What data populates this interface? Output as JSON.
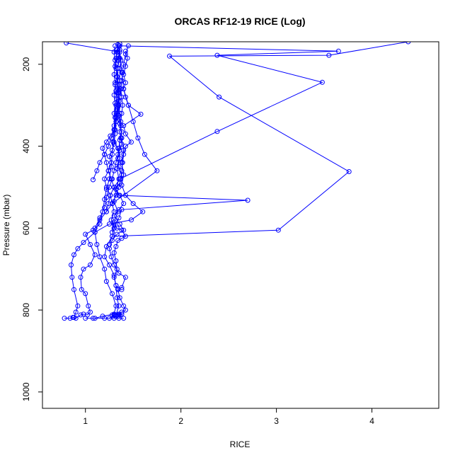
{
  "chart_data": {
    "type": "line",
    "title": "ORCAS RF12-19 RICE (Log)",
    "xlabel": "RICE",
    "ylabel": "Pressure (mbar)",
    "xlim": [
      0.55,
      4.7
    ],
    "ylim": [
      1040,
      145
    ],
    "y_reversed": true,
    "x_ticks": [
      1,
      2,
      3,
      4
    ],
    "y_ticks": [
      200,
      400,
      600,
      800,
      1000
    ],
    "grid": false,
    "colors": {
      "series": "#0000ff",
      "axis": "#000000"
    },
    "series": [
      {
        "points": [
          [
            0.78,
            820
          ],
          [
            0.84,
            820
          ],
          [
            0.87,
            818
          ],
          [
            0.9,
            820
          ],
          [
            0.95,
            812
          ],
          [
            0.98,
            810
          ],
          [
            1.02,
            812
          ],
          [
            1.05,
            805
          ],
          [
            1.03,
            790
          ],
          [
            1.0,
            760
          ],
          [
            0.96,
            750
          ],
          [
            0.95,
            720
          ],
          [
            0.98,
            700
          ],
          [
            1.05,
            690
          ],
          [
            1.1,
            665
          ],
          [
            1.05,
            640
          ],
          [
            1.0,
            615
          ],
          [
            1.08,
            605
          ],
          [
            1.15,
            590
          ],
          [
            1.18,
            560
          ],
          [
            1.2,
            530
          ],
          [
            1.22,
            505
          ],
          [
            1.25,
            480
          ],
          [
            1.27,
            450
          ],
          [
            1.28,
            420
          ],
          [
            1.29,
            390
          ],
          [
            1.3,
            360
          ],
          [
            1.31,
            330
          ],
          [
            1.32,
            300
          ],
          [
            1.33,
            270
          ],
          [
            1.34,
            240
          ],
          [
            1.34,
            210
          ],
          [
            1.35,
            185
          ],
          [
            1.36,
            165
          ],
          [
            1.36,
            150
          ]
        ]
      },
      {
        "points": [
          [
            1.25,
            820
          ],
          [
            1.3,
            812
          ],
          [
            1.35,
            810
          ],
          [
            1.38,
            805
          ],
          [
            1.42,
            800
          ],
          [
            1.4,
            790
          ],
          [
            1.36,
            770
          ],
          [
            1.34,
            750
          ],
          [
            1.38,
            745
          ],
          [
            1.42,
            720
          ],
          [
            1.35,
            710
          ],
          [
            1.3,
            690
          ],
          [
            1.27,
            670
          ],
          [
            1.25,
            650
          ],
          [
            1.28,
            630
          ],
          [
            1.33,
            615
          ],
          [
            1.4,
            605
          ],
          [
            1.36,
            590
          ],
          [
            1.3,
            570
          ],
          [
            1.35,
            555
          ],
          [
            1.4,
            540
          ],
          [
            1.36,
            520
          ],
          [
            1.32,
            505
          ],
          [
            1.36,
            490
          ],
          [
            1.38,
            470
          ],
          [
            1.35,
            450
          ],
          [
            1.34,
            430
          ],
          [
            1.36,
            410
          ],
          [
            1.38,
            395
          ],
          [
            1.37,
            380
          ],
          [
            1.36,
            365
          ],
          [
            1.37,
            340
          ],
          [
            1.38,
            320
          ],
          [
            1.39,
            300
          ],
          [
            1.38,
            280
          ],
          [
            1.37,
            260
          ],
          [
            1.38,
            240
          ],
          [
            1.39,
            220
          ],
          [
            1.4,
            200
          ],
          [
            1.42,
            175
          ],
          [
            1.45,
            155
          ]
        ]
      },
      {
        "points": [
          [
            0.88,
            818
          ],
          [
            0.9,
            805
          ],
          [
            0.92,
            790
          ],
          [
            0.88,
            750
          ],
          [
            0.86,
            720
          ],
          [
            0.85,
            690
          ],
          [
            0.88,
            665
          ],
          [
            0.92,
            650
          ],
          [
            0.98,
            635
          ],
          [
            1.1,
            610
          ],
          [
            1.25,
            590
          ],
          [
            1.48,
            580
          ],
          [
            1.6,
            560
          ],
          [
            1.5,
            540
          ],
          [
            1.42,
            520
          ],
          [
            1.38,
            495
          ],
          [
            1.4,
            470
          ],
          [
            1.38,
            440
          ],
          [
            1.4,
            410
          ],
          [
            1.38,
            380
          ],
          [
            1.37,
            350
          ],
          [
            1.36,
            320
          ],
          [
            1.35,
            290
          ],
          [
            1.34,
            260
          ],
          [
            1.33,
            230
          ],
          [
            1.32,
            200
          ],
          [
            1.33,
            170
          ],
          [
            1.34,
            152
          ]
        ]
      },
      {
        "points": [
          [
            1.1,
            820
          ],
          [
            1.18,
            815
          ],
          [
            1.3,
            810
          ],
          [
            1.32,
            790
          ],
          [
            1.28,
            760
          ],
          [
            1.22,
            730
          ],
          [
            1.2,
            700
          ],
          [
            1.15,
            670
          ],
          [
            1.12,
            640
          ],
          [
            1.1,
            610
          ],
          [
            1.15,
            580
          ],
          [
            1.22,
            560
          ],
          [
            1.28,
            540
          ],
          [
            1.75,
            460
          ],
          [
            1.62,
            420
          ],
          [
            1.55,
            380
          ],
          [
            1.5,
            340
          ],
          [
            1.45,
            300
          ],
          [
            1.4,
            260
          ],
          [
            1.38,
            220
          ],
          [
            1.36,
            185
          ],
          [
            1.35,
            155
          ]
        ]
      },
      {
        "points": [
          [
            1.32,
            812
          ],
          [
            1.35,
            790
          ],
          [
            1.33,
            770
          ],
          [
            1.32,
            740
          ],
          [
            1.3,
            715
          ],
          [
            1.25,
            690
          ],
          [
            1.2,
            670
          ],
          [
            1.22,
            645
          ],
          [
            1.28,
            620
          ],
          [
            3.02,
            605
          ],
          [
            3.76,
            462
          ],
          [
            2.4,
            280
          ],
          [
            1.88,
            180
          ],
          [
            3.55,
            178
          ],
          [
            4.38,
            145
          ]
        ]
      },
      {
        "points": [
          [
            1.3,
            600
          ],
          [
            1.35,
            575
          ],
          [
            1.38,
            555
          ],
          [
            2.7,
            532
          ],
          [
            1.35,
            520
          ],
          [
            1.3,
            500
          ],
          [
            1.36,
            480
          ],
          [
            2.38,
            364
          ],
          [
            3.48,
            244
          ],
          [
            2.38,
            178
          ],
          [
            3.65,
            168
          ],
          [
            1.36,
            155
          ]
        ]
      },
      {
        "points": [
          [
            1.28,
            610
          ],
          [
            1.3,
            585
          ],
          [
            1.34,
            560
          ],
          [
            1.3,
            535
          ],
          [
            1.32,
            505
          ],
          [
            1.35,
            480
          ],
          [
            1.33,
            455
          ],
          [
            1.36,
            430
          ],
          [
            1.34,
            405
          ],
          [
            1.3,
            390
          ],
          [
            1.31,
            360
          ],
          [
            1.33,
            330
          ],
          [
            1.34,
            300
          ],
          [
            1.35,
            270
          ],
          [
            1.36,
            240
          ],
          [
            1.36,
            210
          ],
          [
            1.37,
            190
          ],
          [
            1.36,
            170
          ],
          [
            0.8,
            148
          ]
        ]
      },
      {
        "points": [
          [
            1.1,
            600
          ],
          [
            1.15,
            575
          ],
          [
            1.2,
            550
          ],
          [
            1.22,
            525
          ],
          [
            1.25,
            500
          ],
          [
            1.28,
            480
          ],
          [
            1.3,
            460
          ],
          [
            1.32,
            440
          ],
          [
            1.34,
            420
          ],
          [
            1.35,
            405
          ],
          [
            1.36,
            385
          ],
          [
            1.38,
            365
          ],
          [
            1.36,
            345
          ],
          [
            1.35,
            325
          ],
          [
            1.34,
            305
          ],
          [
            1.33,
            285
          ],
          [
            1.32,
            265
          ],
          [
            1.31,
            245
          ],
          [
            1.3,
            225
          ],
          [
            1.31,
            205
          ],
          [
            1.32,
            185
          ],
          [
            1.33,
            165
          ]
        ]
      },
      {
        "points": [
          [
            1.28,
            540
          ],
          [
            1.32,
            520
          ],
          [
            1.35,
            500
          ],
          [
            1.37,
            480
          ],
          [
            1.38,
            460
          ],
          [
            1.39,
            440
          ],
          [
            1.4,
            420
          ],
          [
            1.42,
            400
          ],
          [
            1.48,
            390
          ],
          [
            1.42,
            370
          ],
          [
            1.4,
            350
          ],
          [
            1.58,
            322
          ],
          [
            1.45,
            300
          ],
          [
            1.42,
            280
          ],
          [
            1.4,
            260
          ],
          [
            1.42,
            245
          ],
          [
            1.4,
            225
          ],
          [
            1.42,
            205
          ],
          [
            1.44,
            185
          ],
          [
            1.42,
            168
          ]
        ]
      },
      {
        "points": [
          [
            1.22,
            560
          ],
          [
            1.24,
            540
          ],
          [
            1.26,
            520
          ],
          [
            1.22,
            500
          ],
          [
            1.2,
            480
          ],
          [
            1.24,
            460
          ],
          [
            1.27,
            440
          ],
          [
            1.25,
            425
          ],
          [
            1.28,
            410
          ],
          [
            1.3,
            395
          ],
          [
            1.31,
            370
          ],
          [
            1.3,
            350
          ],
          [
            1.32,
            330
          ],
          [
            1.33,
            310
          ],
          [
            1.35,
            290
          ],
          [
            1.34,
            270
          ],
          [
            1.35,
            250
          ],
          [
            1.33,
            230
          ],
          [
            1.34,
            210
          ],
          [
            1.35,
            190
          ],
          [
            1.34,
            170
          ]
        ]
      },
      {
        "points": [
          [
            1.25,
            640
          ],
          [
            1.28,
            620
          ],
          [
            1.3,
            600
          ],
          [
            1.27,
            580
          ],
          [
            1.3,
            560
          ],
          [
            1.28,
            540
          ],
          [
            1.26,
            520
          ],
          [
            1.3,
            500
          ],
          [
            1.27,
            480
          ],
          [
            1.24,
            460
          ],
          [
            1.22,
            440
          ],
          [
            1.2,
            420
          ],
          [
            1.18,
            405
          ],
          [
            1.22,
            390
          ],
          [
            1.26,
            375
          ],
          [
            1.3,
            360
          ],
          [
            1.32,
            340
          ],
          [
            1.33,
            320
          ],
          [
            1.35,
            300
          ],
          [
            1.36,
            280
          ],
          [
            1.37,
            260
          ],
          [
            1.38,
            240
          ],
          [
            1.39,
            220
          ]
        ]
      },
      {
        "points": [
          [
            1.08,
            482
          ],
          [
            1.12,
            460
          ],
          [
            1.15,
            440
          ],
          [
            1.2,
            420
          ],
          [
            1.24,
            400
          ],
          [
            1.27,
            380
          ],
          [
            1.3,
            360
          ],
          [
            1.32,
            340
          ],
          [
            1.3,
            320
          ],
          [
            1.31,
            295
          ],
          [
            1.3,
            275
          ],
          [
            1.31,
            250
          ],
          [
            1.33,
            230
          ],
          [
            1.32,
            210
          ],
          [
            1.31,
            190
          ],
          [
            1.3,
            170
          ],
          [
            1.31,
            155
          ]
        ]
      },
      {
        "points": [
          [
            1.34,
            815
          ],
          [
            1.36,
            812
          ],
          [
            1.38,
            810
          ],
          [
            1.34,
            812
          ],
          [
            1.32,
            815
          ],
          [
            1.3,
            813
          ],
          [
            1.28,
            812
          ]
        ]
      },
      {
        "points": [
          [
            1.38,
            750
          ],
          [
            1.34,
            748
          ],
          [
            1.32,
            740
          ],
          [
            1.3,
            720
          ],
          [
            1.33,
            700
          ],
          [
            1.32,
            680
          ],
          [
            1.3,
            660
          ],
          [
            1.32,
            645
          ],
          [
            1.34,
            630
          ],
          [
            1.38,
            625
          ],
          [
            1.42,
            620
          ],
          [
            1.38,
            605
          ],
          [
            1.33,
            600
          ],
          [
            1.3,
            590
          ]
        ]
      },
      {
        "points": [
          [
            1.0,
            820
          ],
          [
            1.08,
            820
          ],
          [
            1.2,
            820
          ],
          [
            1.3,
            820
          ],
          [
            1.35,
            820
          ],
          [
            1.4,
            820
          ]
        ]
      }
    ]
  }
}
